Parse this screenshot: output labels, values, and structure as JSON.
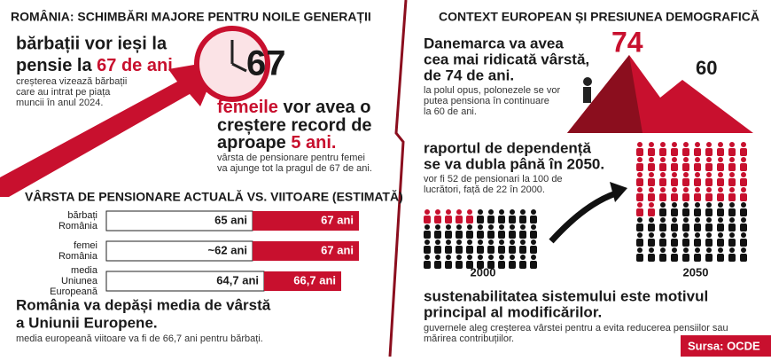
{
  "left": {
    "title": "ROMÂNIA: SCHIMBĂRI MAJORE PENTRU NOILE GENERAȚII",
    "men": {
      "line1": "bărbații vor ieși la",
      "line2": "pensie la ",
      "highlight": "67 de ani.",
      "note": [
        "creșterea vizează bărbații",
        "care au intrat pe piața",
        "muncii în anul 2024."
      ]
    },
    "clock_number": "67",
    "women": {
      "highlight1": "femeile",
      "line1": " vor avea o",
      "line2": "creștere record de",
      "line3": "aproape ",
      "highlight2": "5 ani.",
      "note": [
        "vârsta de pensionare pentru femei",
        "va ajunge tot la pragul de 67 de ani."
      ]
    },
    "chart": {
      "title": "VÂRSTA DE PENSIONARE ACTUALĂ VS. VIITOARE (ESTIMATĂ)",
      "rows": [
        {
          "label": [
            "bărbați",
            "România"
          ],
          "current": "65 ani",
          "future": "67 ani"
        },
        {
          "label": [
            "femei",
            "România"
          ],
          "current": "~62 ani",
          "future": "67 ani"
        },
        {
          "label": [
            "media",
            "Uniunea",
            "Europeană"
          ],
          "current": "64,7 ani",
          "future": "66,7 ani"
        }
      ]
    },
    "footer": {
      "line1": "România va depăși media de vârstă",
      "line2": "a Uniunii Europene.",
      "note": "media europeană viitoare va fi de 66,7 ani pentru bărbați."
    }
  },
  "right": {
    "title": "CONTEXT EUROPEAN ȘI PRESIUNEA DEMOGRAFICĂ",
    "denmark": {
      "lines": [
        "Danemarca va avea",
        "cea mai ridicată vârstă,",
        "de 74 de ani."
      ],
      "note": [
        "la polul opus, polonezele se vor",
        "putea pensiona în continuare",
        "la 60 de ani."
      ],
      "peak_high": "74",
      "peak_low": "60"
    },
    "dependency": {
      "lines": [
        "raportul de dependență",
        "se va dubla până în 2050."
      ],
      "note": [
        "vor fi 52 de pensionari la 100 de",
        "lucrători, față de 22 în 2000."
      ],
      "year_a": "2000",
      "year_b": "2050"
    },
    "sustainability": {
      "lines": [
        "sustenabilitatea sistemului este motivul",
        "principal al modificărilor."
      ],
      "note": [
        "guvernele aleg creșterea vârstei pentru a evita reducerea pensiilor sau",
        "mărirea contribuțiilor."
      ]
    },
    "source": "Sursa: OCDE"
  }
}
